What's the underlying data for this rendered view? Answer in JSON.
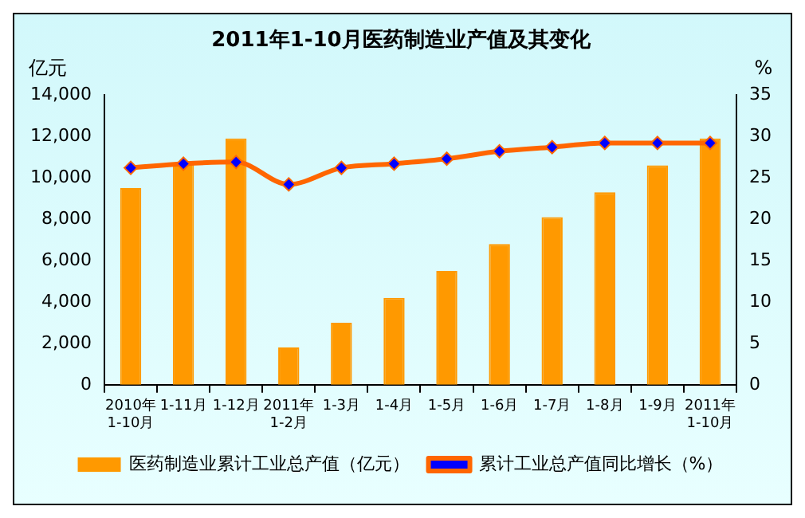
{
  "chart_data": {
    "type": "bar",
    "title": "2011年1-10月医药制造业产值及其变化",
    "ylabel": "亿元",
    "y2label": "%",
    "categories": [
      "2010年\n1-10月",
      "1-11月",
      "1-12月",
      "2011年\n1-2月",
      "1-3月",
      "1-4月",
      "1-5月",
      "1-6月",
      "1-7月",
      "1-8月",
      "1-9月",
      "2011年\n1-10月"
    ],
    "series": [
      {
        "name": "医药制造业累计工业总产值（亿元）",
        "color": "#ff9900",
        "values": [
          9500,
          10700,
          11900,
          1800,
          3000,
          4200,
          5500,
          6800,
          8100,
          9300,
          10600,
          11900
        ]
      },
      {
        "name": "累计工业总产值同比增长（%）",
        "type": "line",
        "axis": "y2",
        "color": "#ff6600",
        "marker": "diamond",
        "values": [
          26.2,
          26.7,
          26.9,
          24.2,
          26.2,
          26.7,
          27.3,
          28.2,
          28.7,
          29.2,
          29.2,
          29.2
        ]
      }
    ],
    "ylim": [
      0,
      14000
    ],
    "yticks": [
      0,
      {
        "value": 2000,
        "label": "2,000"
      },
      {
        "value": 4000,
        "label": "4,000"
      },
      {
        "value": 6000,
        "label": "6,000"
      },
      {
        "value": 8000,
        "label": "8,000"
      },
      {
        "value": 10000,
        "label": "10,000"
      },
      {
        "value": 12000,
        "label": "12,000"
      },
      {
        "value": 14000,
        "label": "14,000"
      }
    ],
    "y2lim": [
      0,
      35
    ],
    "y2ticks": [
      0,
      5,
      10,
      15,
      20,
      25,
      30,
      35
    ],
    "grid": false,
    "legend": "bottom"
  }
}
